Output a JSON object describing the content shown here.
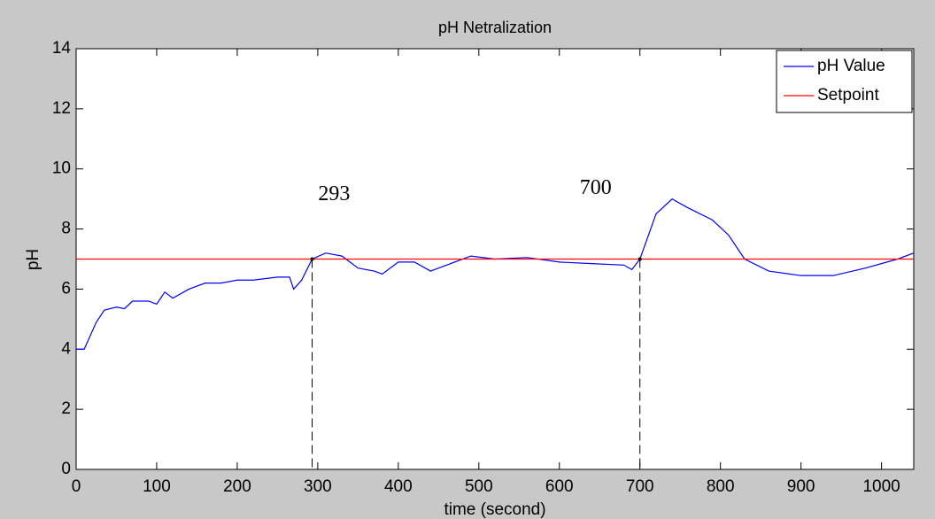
{
  "chart_data": {
    "type": "line",
    "title": "pH Netralization",
    "xlabel": "time (second)",
    "ylabel": "pH",
    "x": [
      0,
      10,
      15,
      25,
      35,
      50,
      60,
      70,
      90,
      100,
      110,
      120,
      140,
      160,
      180,
      200,
      220,
      250,
      265,
      270,
      280,
      293,
      310,
      330,
      350,
      370,
      380,
      400,
      420,
      440,
      460,
      490,
      520,
      560,
      600,
      640,
      680,
      690,
      700,
      720,
      740,
      760,
      790,
      810,
      830,
      860,
      900,
      940,
      980,
      1020,
      1040
    ],
    "series": [
      {
        "name": "pH Value",
        "color": "#0000ff",
        "values": [
          4.0,
          4.0,
          4.3,
          4.9,
          5.3,
          5.4,
          5.35,
          5.6,
          5.6,
          5.5,
          5.9,
          5.7,
          6.0,
          6.2,
          6.2,
          6.3,
          6.3,
          6.4,
          6.4,
          6.0,
          6.3,
          7.0,
          7.2,
          7.1,
          6.7,
          6.6,
          6.5,
          6.9,
          6.9,
          6.6,
          6.8,
          7.1,
          7.0,
          7.05,
          6.9,
          6.85,
          6.8,
          6.65,
          7.0,
          8.5,
          9.0,
          8.7,
          8.3,
          7.8,
          7.0,
          6.6,
          6.45,
          6.45,
          6.7,
          7.0,
          7.2
        ]
      },
      {
        "name": "Setpoint",
        "color": "#ff0000",
        "values": [
          7,
          7,
          7,
          7,
          7,
          7,
          7,
          7,
          7,
          7,
          7,
          7,
          7,
          7,
          7,
          7,
          7,
          7,
          7,
          7,
          7,
          7,
          7,
          7,
          7,
          7,
          7,
          7,
          7,
          7,
          7,
          7,
          7,
          7,
          7,
          7,
          7,
          7,
          7,
          7,
          7,
          7,
          7,
          7,
          7,
          7,
          7,
          7,
          7,
          7,
          7
        ]
      }
    ],
    "annotations": [
      {
        "label": "293",
        "x": 293,
        "y": 7
      },
      {
        "label": "700",
        "x": 700,
        "y": 7
      }
    ],
    "xlim": [
      0,
      1040
    ],
    "ylim": [
      0,
      14
    ],
    "xticks": [
      0,
      100,
      200,
      300,
      400,
      500,
      600,
      700,
      800,
      900,
      1000
    ],
    "yticks": [
      0,
      2,
      4,
      6,
      8,
      10,
      12,
      14
    ],
    "grid": false,
    "legend": "northeast"
  }
}
